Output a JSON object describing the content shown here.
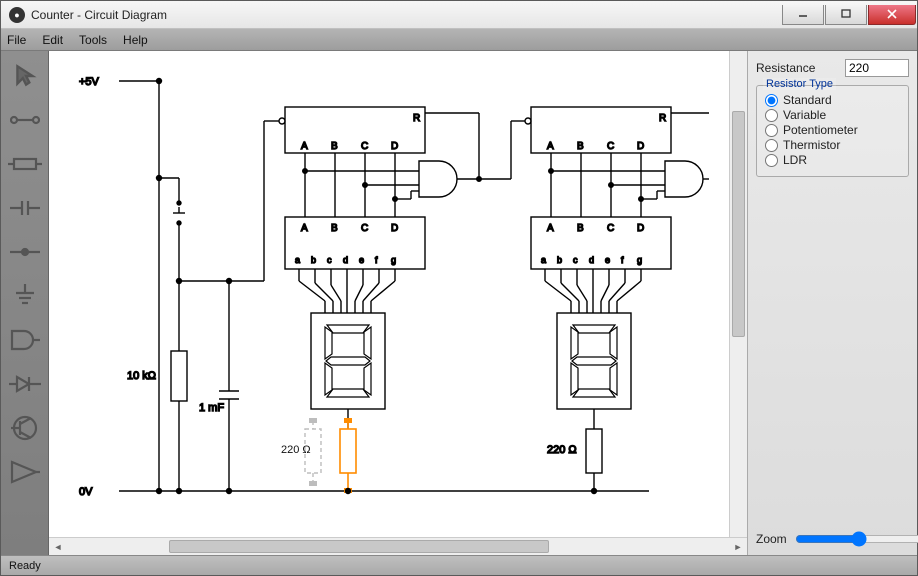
{
  "window": {
    "title": "Counter - Circuit Diagram"
  },
  "menu": {
    "file": "File",
    "edit": "Edit",
    "tools": "Tools",
    "help": "Help"
  },
  "toolbox_items": [
    "pointer",
    "wire",
    "resistor",
    "capacitor",
    "junction",
    "ground",
    "and-gate",
    "diode",
    "transistor",
    "op-amp"
  ],
  "props": {
    "resistance_label": "Resistance",
    "resistance_value": "220",
    "group_title": "Resistor Type",
    "options": [
      {
        "label": "Standard",
        "checked": true
      },
      {
        "label": "Variable",
        "checked": false
      },
      {
        "label": "Potentiometer",
        "checked": false
      },
      {
        "label": "Thermistor",
        "checked": false
      },
      {
        "label": "LDR",
        "checked": false
      }
    ]
  },
  "zoom": {
    "label": "Zoom",
    "value": 50
  },
  "status": {
    "text": "Ready"
  },
  "circuit": {
    "rails": {
      "pos_label": "+5V",
      "gnd_label": "0V"
    },
    "components": {
      "r1": "10 kΩ",
      "c1": "1 mF",
      "r2": "220 Ω",
      "r3": "220 Ω",
      "counter_pins": [
        "A",
        "B",
        "C",
        "D"
      ],
      "counter_reset": "R",
      "decoder_in": [
        "A",
        "B",
        "C",
        "D"
      ],
      "decoder_out": [
        "a",
        "b",
        "c",
        "d",
        "e",
        "f",
        "g"
      ]
    },
    "colors": {
      "wire": "#000000",
      "selected": "#ff8c00",
      "ghost": "#bdbdbd",
      "background": "#ffffff"
    }
  }
}
